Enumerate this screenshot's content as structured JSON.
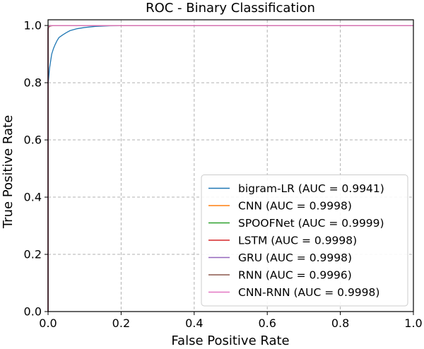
{
  "chart_data": {
    "type": "line",
    "title": "ROC - Binary Classification",
    "xlabel": "False Positive Rate",
    "ylabel": "True Positive Rate",
    "xlim": [
      0.0,
      1.0
    ],
    "ylim": [
      0.0,
      1.02
    ],
    "xticks": [
      "0.0",
      "0.2",
      "0.4",
      "0.6",
      "0.8",
      "1.0"
    ],
    "yticks": [
      "0.0",
      "0.2",
      "0.4",
      "0.6",
      "0.8",
      "1.0"
    ],
    "grid": true,
    "legend_position": "lower-right",
    "series": [
      {
        "name": "bigram-LR (AUC = 0.9941)",
        "color": "#1f77b4",
        "x": [
          0.0,
          0.0,
          0.002,
          0.004,
          0.007,
          0.01,
          0.015,
          0.02,
          0.025,
          0.03,
          0.04,
          0.05,
          0.06,
          0.08,
          0.1,
          0.13,
          0.17,
          0.25,
          0.4,
          0.6,
          0.8,
          1.0
        ],
        "y": [
          0.0,
          0.79,
          0.82,
          0.85,
          0.875,
          0.9,
          0.92,
          0.935,
          0.948,
          0.958,
          0.967,
          0.975,
          0.982,
          0.989,
          0.993,
          0.997,
          0.999,
          1.0,
          1.0,
          1.0,
          1.0,
          1.0
        ]
      },
      {
        "name": "CNN (AUC = 0.9998)",
        "color": "#ff7f0e",
        "x": [
          0.0,
          0.0,
          0.001,
          0.003,
          0.01,
          1.0
        ],
        "y": [
          0.0,
          0.99,
          0.997,
          0.999,
          1.0,
          1.0
        ]
      },
      {
        "name": "SPOOFNet (AUC = 0.9999)",
        "color": "#2ca02c",
        "x": [
          0.0,
          0.0,
          0.001,
          0.003,
          1.0
        ],
        "y": [
          0.0,
          0.995,
          0.999,
          1.0,
          1.0
        ]
      },
      {
        "name": "LSTM (AUC = 0.9998)",
        "color": "#d62728",
        "x": [
          0.0,
          0.0,
          0.001,
          0.004,
          0.01,
          1.0
        ],
        "y": [
          0.0,
          0.99,
          0.997,
          0.999,
          1.0,
          1.0
        ]
      },
      {
        "name": "GRU (AUC = 0.9998)",
        "color": "#9467bd",
        "x": [
          0.0,
          0.0,
          0.001,
          0.004,
          0.01,
          1.0
        ],
        "y": [
          0.0,
          0.99,
          0.997,
          0.999,
          1.0,
          1.0
        ]
      },
      {
        "name": "RNN (AUC = 0.9996)",
        "color": "#8c564b",
        "x": [
          0.0,
          0.0,
          0.002,
          0.006,
          0.015,
          1.0
        ],
        "y": [
          0.0,
          0.985,
          0.995,
          0.998,
          1.0,
          1.0
        ]
      },
      {
        "name": "CNN-RNN (AUC = 0.9998)",
        "color": "#e377c2",
        "x": [
          0.0,
          0.0,
          0.001,
          0.004,
          0.01,
          1.0
        ],
        "y": [
          0.0,
          0.99,
          0.997,
          0.999,
          1.0,
          1.0
        ]
      }
    ]
  }
}
